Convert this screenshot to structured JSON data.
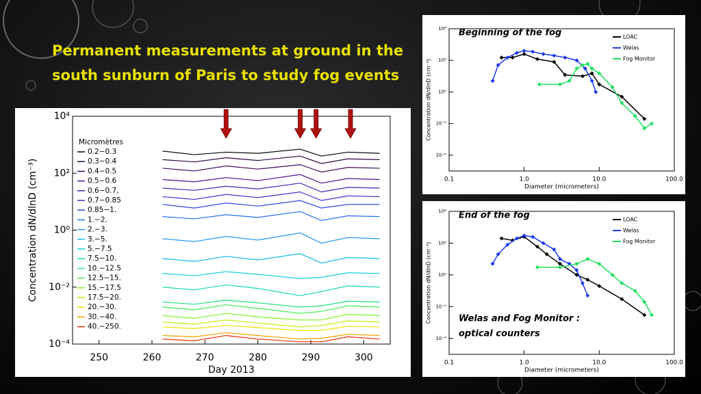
{
  "slide_title": "Permanent measurements at ground in the south sunburn of Paris to study fog events",
  "chart_data": [
    {
      "type": "line",
      "legend_title": "Micromètres",
      "ylabel": "Concentration dN/dlnD (cm⁻³)",
      "xlabel": "Day 2013",
      "log_y": true,
      "xlim": [
        245,
        305
      ],
      "xticks": [
        250,
        260,
        270,
        280,
        290,
        300
      ],
      "ylim": [
        0.0001,
        10000
      ],
      "yticks": [
        {
          "value": 0.0001,
          "label": "10⁻⁴"
        },
        {
          "value": 0.01,
          "label": "10⁻²"
        },
        {
          "value": 1,
          "label": "10⁰"
        },
        {
          "value": 100,
          "label": "10²"
        },
        {
          "value": 10000,
          "label": "10⁴"
        }
      ],
      "event_days": [
        274,
        288,
        291,
        297.5
      ],
      "event_color": "#b01010",
      "x": [
        262,
        268,
        274,
        280,
        288,
        292,
        297,
        303
      ],
      "series": [
        {
          "name": "0.2−0.3",
          "color": "#000000",
          "values": [
            600,
            450,
            550,
            500,
            700,
            400,
            550,
            500
          ]
        },
        {
          "name": "0.3−0.4",
          "color": "#2a0838",
          "values": [
            300,
            250,
            350,
            280,
            400,
            220,
            320,
            300
          ]
        },
        {
          "name": "0.4−0.5",
          "color": "#3d0a5c",
          "values": [
            150,
            120,
            180,
            140,
            200,
            110,
            160,
            150
          ]
        },
        {
          "name": "0.5−0.6",
          "color": "#4a1090",
          "values": [
            60,
            50,
            70,
            55,
            90,
            45,
            65,
            60
          ]
        },
        {
          "name": "0.6−0.7,",
          "color": "#4a20b8",
          "values": [
            30,
            25,
            35,
            28,
            45,
            22,
            32,
            30
          ]
        },
        {
          "name": "0.7−0.85",
          "color": "#3a30d0",
          "values": [
            15,
            12,
            18,
            14,
            22,
            11,
            16,
            15
          ]
        },
        {
          "name": "0.85−1.",
          "color": "#2848e0",
          "values": [
            8,
            6,
            9,
            7,
            11,
            6,
            8,
            8
          ]
        },
        {
          "name": "1.−2.",
          "color": "#2070f0",
          "values": [
            3,
            2.5,
            3.5,
            2.8,
            4.5,
            2.2,
            3.2,
            3
          ]
        },
        {
          "name": "2.−3.",
          "color": "#1898f0",
          "values": [
            0.5,
            0.4,
            0.6,
            0.45,
            0.8,
            0.35,
            0.55,
            0.5
          ]
        },
        {
          "name": "3.−5.",
          "color": "#10b8e8",
          "values": [
            0.1,
            0.08,
            0.12,
            0.09,
            0.15,
            0.07,
            0.11,
            0.1
          ]
        },
        {
          "name": "5.−7.5",
          "color": "#10d0d8",
          "values": [
            0.03,
            0.025,
            0.035,
            0.028,
            0.02,
            0.022,
            0.032,
            0.03
          ]
        },
        {
          "name": "7.5−10.",
          "color": "#10d8b0",
          "values": [
            0.01,
            0.008,
            0.012,
            0.009,
            0.005,
            0.007,
            0.011,
            0.01
          ]
        },
        {
          "name": "10.−12.5",
          "color": "#20e080",
          "values": [
            0.003,
            0.0025,
            0.0035,
            0.0028,
            0.002,
            0.0022,
            0.0032,
            0.003
          ]
        },
        {
          "name": "12.5−15.",
          "color": "#40e850",
          "values": [
            0.002,
            0.0016,
            0.0024,
            0.0018,
            0.0012,
            0.0014,
            0.0022,
            0.002
          ]
        },
        {
          "name": "15.−17.5",
          "color": "#80f020",
          "values": [
            0.001,
            0.0008,
            0.0012,
            0.0009,
            0.0007,
            0.0007,
            0.0011,
            0.001
          ]
        },
        {
          "name": "17.5−20.",
          "color": "#c0f000",
          "values": [
            0.0006,
            0.0005,
            0.0007,
            0.00055,
            0.0004,
            0.00045,
            0.00065,
            0.0006
          ]
        },
        {
          "name": "20.−30.",
          "color": "#f0e000",
          "values": [
            0.0004,
            0.00035,
            0.00045,
            0.00038,
            0.0003,
            0.0003,
            0.00042,
            0.0004
          ]
        },
        {
          "name": "30.−40.",
          "color": "#f0a000",
          "values": [
            0.0002,
            0.00018,
            0.00025,
            0.0002,
            0.00015,
            0.00016,
            0.00022,
            0.0002
          ]
        },
        {
          "name": "40.−250.",
          "color": "#e03000",
          "values": [
            0.00015,
            0.00013,
            0.0002,
            0.00015,
            0.00012,
            0.00012,
            0.00018,
            0.00015
          ]
        }
      ]
    },
    {
      "type": "scatter-line",
      "title": "Beginning of the fog",
      "ylabel": "Concentration dN/dlnD (cm⁻³)",
      "xlabel": "Diameter (micrometers)",
      "log_x": true,
      "log_y": true,
      "xlim": [
        0.1,
        100
      ],
      "xticks": [
        {
          "value": 0.1,
          "label": "0.1"
        },
        {
          "value": 1,
          "label": "1.0"
        },
        {
          "value": 10,
          "label": "10.0"
        },
        {
          "value": 100,
          "label": "100.0"
        }
      ],
      "ylim": [
        1e-05,
        10000
      ],
      "yticks": [
        {
          "value": 0.0001,
          "label": "10⁻⁴"
        },
        {
          "value": 0.01,
          "label": "10⁻²"
        },
        {
          "value": 1,
          "label": "10⁰"
        },
        {
          "value": 100,
          "label": "10²"
        },
        {
          "value": 10000,
          "label": "10⁴"
        }
      ],
      "series": [
        {
          "name": "LOAC",
          "color": "#000000",
          "x": [
            0.5,
            0.7,
            1.0,
            1.5,
            2.5,
            3.5,
            6,
            8,
            10,
            20,
            40
          ],
          "values": [
            150,
            150,
            250,
            120,
            80,
            12,
            10,
            15,
            3,
            0.5,
            0.02
          ]
        },
        {
          "name": "Welas",
          "color": "#1a3ae8",
          "x": [
            0.38,
            0.45,
            0.6,
            0.8,
            1,
            1.3,
            1.8,
            2.5,
            3.5,
            5,
            6.5,
            8,
            9
          ],
          "values": [
            5,
            50,
            150,
            300,
            400,
            350,
            250,
            200,
            150,
            100,
            30,
            5,
            1
          ]
        },
        {
          "name": "Fog Monitor",
          "color": "#20e060",
          "x": [
            1.6,
            3,
            4,
            5,
            6,
            7,
            8,
            10,
            15,
            20,
            30,
            40,
            50
          ],
          "values": [
            3,
            3,
            5,
            30,
            50,
            60,
            30,
            15,
            2,
            0.2,
            0.03,
            0.005,
            0.01
          ]
        }
      ]
    },
    {
      "type": "scatter-line",
      "title": "End of the fog",
      "annotation": [
        "Welas and Fog Monitor :",
        "optical counters"
      ],
      "ylabel": "Concentration dN/dlnD (cm⁻³)",
      "xlabel": "Diameter (micrometers)",
      "log_x": true,
      "log_y": true,
      "xlim": [
        0.1,
        100
      ],
      "xticks": [
        {
          "value": 0.1,
          "label": "0.1"
        },
        {
          "value": 1,
          "label": "1.0"
        },
        {
          "value": 10,
          "label": "10.0"
        },
        {
          "value": 100,
          "label": "100.0"
        }
      ],
      "ylim": [
        1e-05,
        10000
      ],
      "yticks": [
        {
          "value": 0.0001,
          "label": "10⁻⁴"
        },
        {
          "value": 0.01,
          "label": "10⁻²"
        },
        {
          "value": 1,
          "label": "10⁰"
        },
        {
          "value": 100,
          "label": "10²"
        },
        {
          "value": 10000,
          "label": "10⁴"
        }
      ],
      "series": [
        {
          "name": "LOAC",
          "color": "#000000",
          "x": [
            0.5,
            0.7,
            1,
            1.5,
            2,
            3,
            5,
            7,
            10,
            20,
            40
          ],
          "values": [
            200,
            150,
            250,
            60,
            20,
            5,
            1,
            0.5,
            0.2,
            0.03,
            0.003
          ]
        },
        {
          "name": "Welas",
          "color": "#1a3ae8",
          "x": [
            0.38,
            0.45,
            0.6,
            0.8,
            1,
            1.3,
            1.8,
            2.5,
            3,
            4,
            5,
            6,
            7
          ],
          "values": [
            5,
            20,
            80,
            200,
            300,
            250,
            100,
            40,
            10,
            5,
            2,
            0.3,
            0.05
          ]
        },
        {
          "name": "Fog Monitor",
          "color": "#20e060",
          "x": [
            1.5,
            3,
            5,
            7,
            10,
            15,
            20,
            30,
            40,
            50
          ],
          "values": [
            3,
            3,
            5,
            10,
            5,
            1,
            0.3,
            0.1,
            0.02,
            0.003
          ]
        }
      ]
    }
  ]
}
